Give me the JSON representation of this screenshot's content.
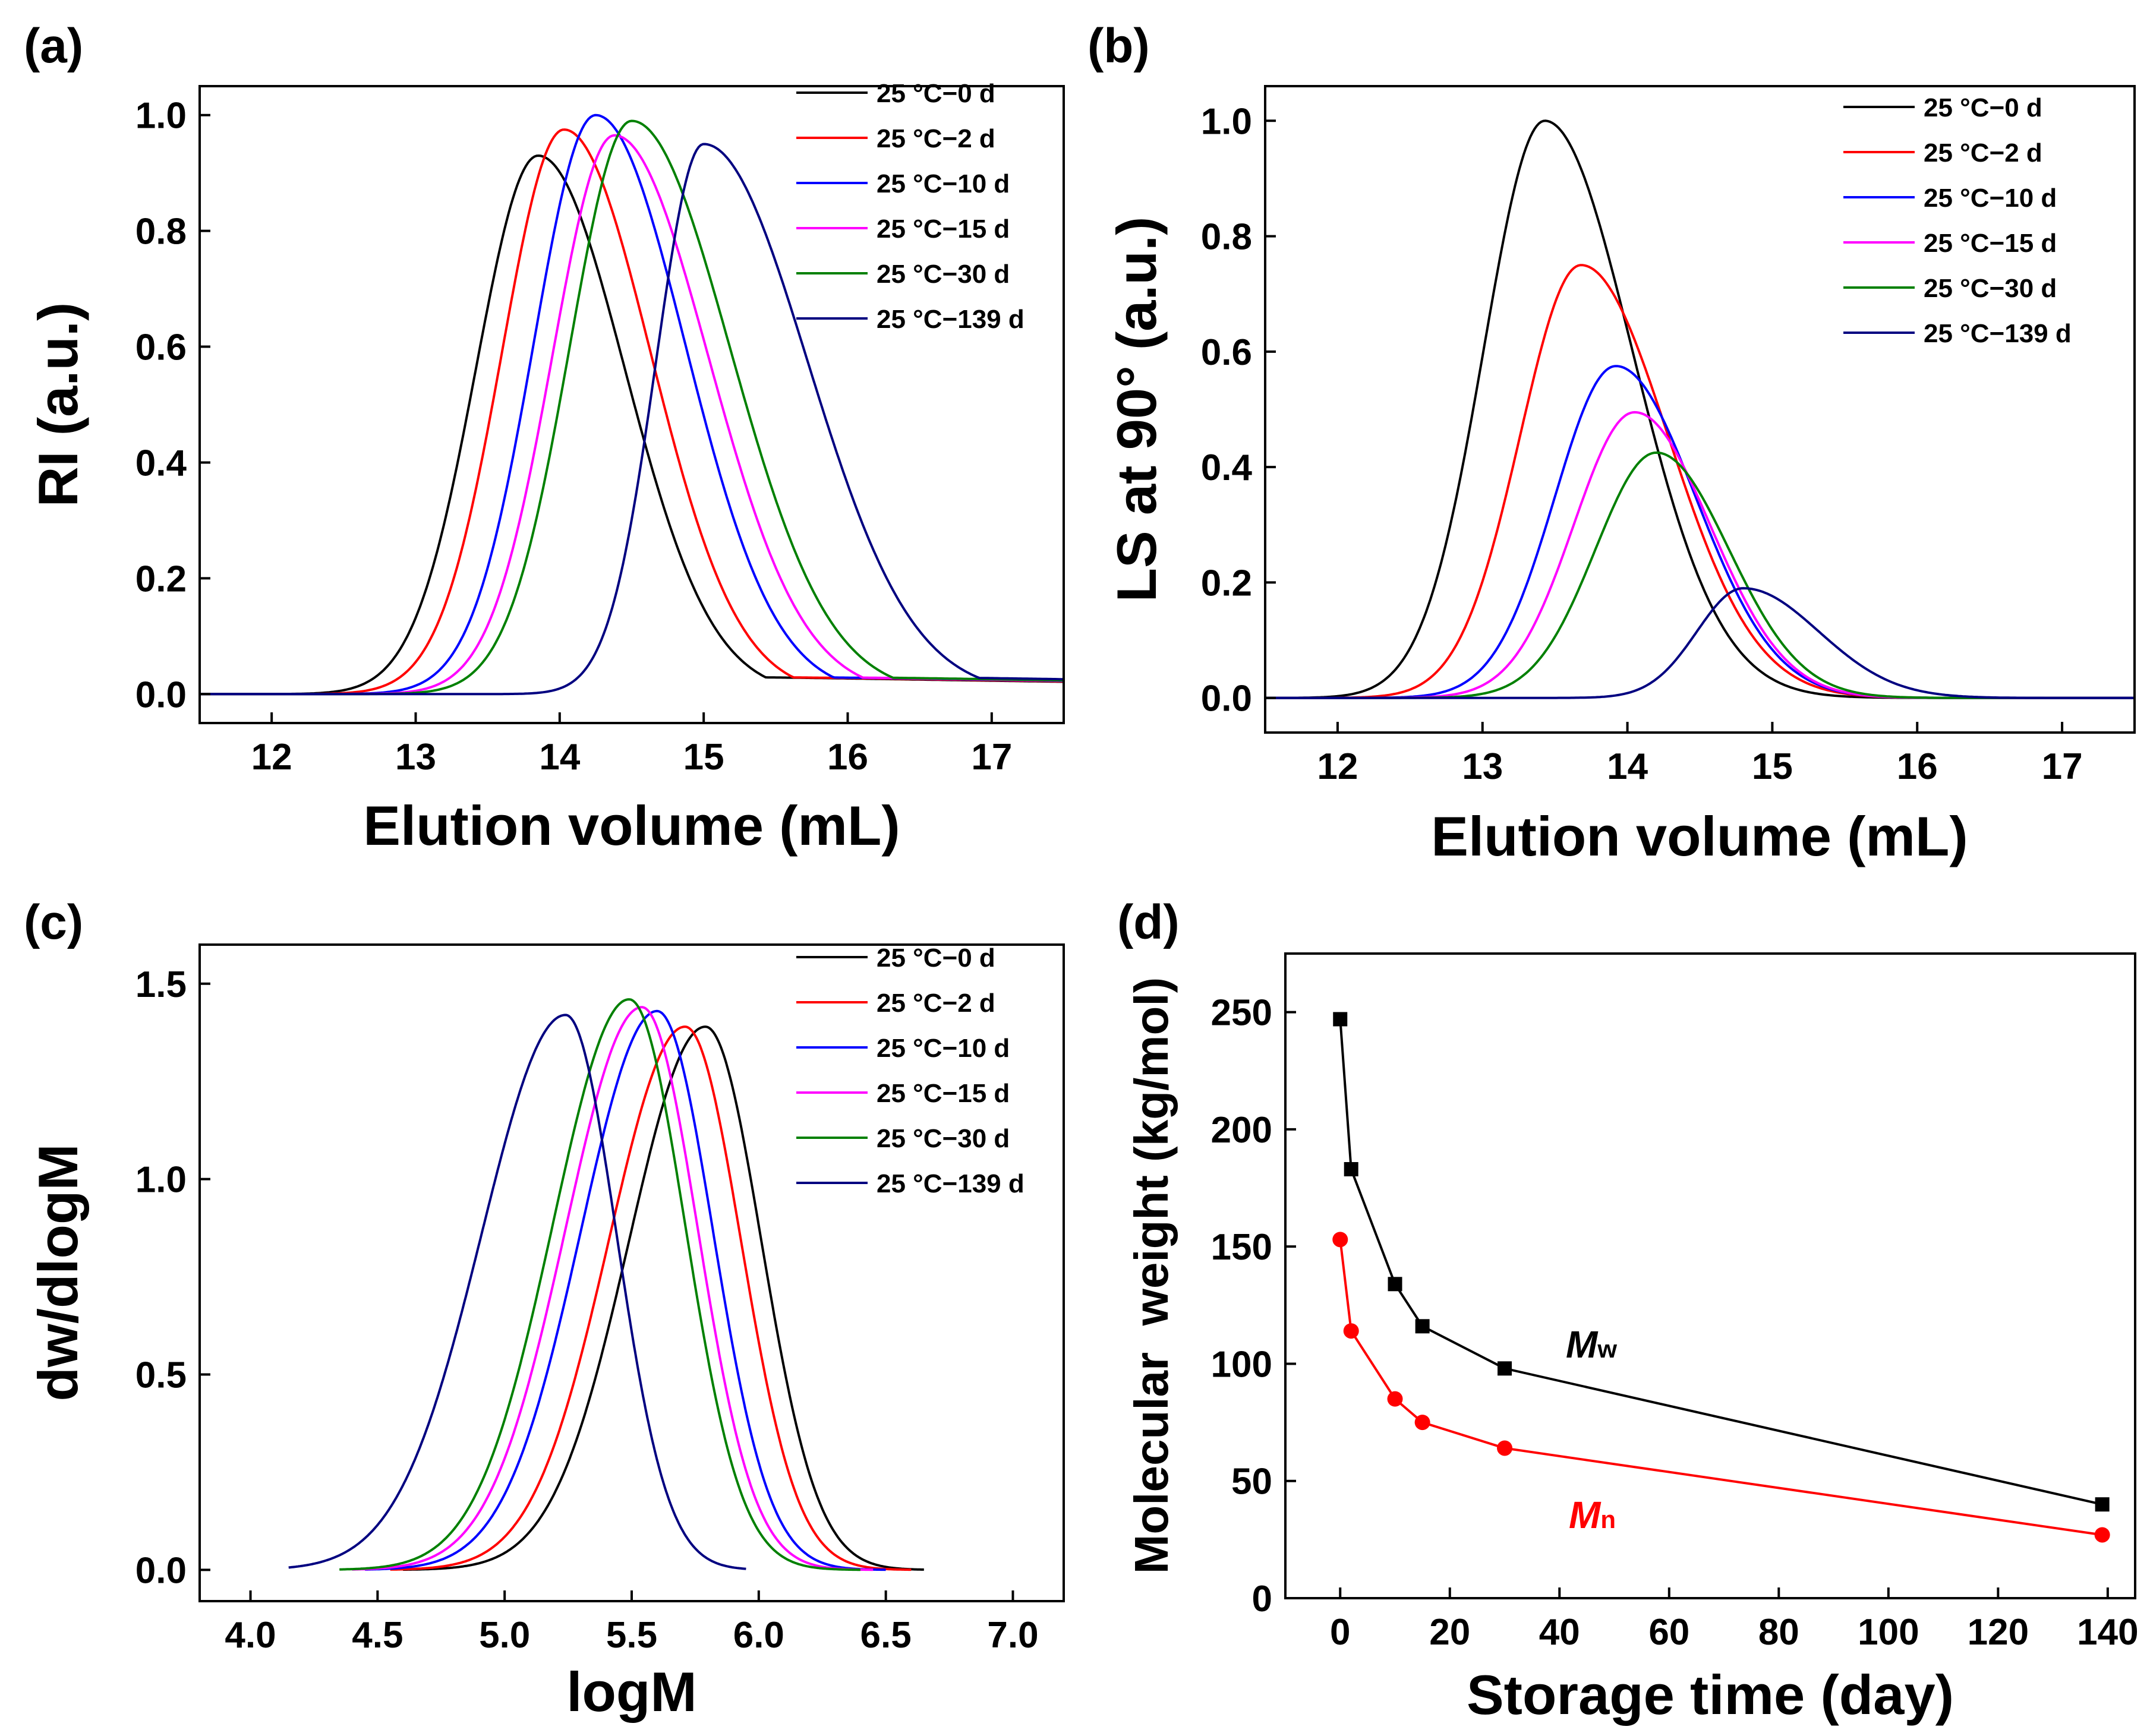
{
  "figure": {
    "description_panels": [
      "a",
      "b",
      "c",
      "d"
    ]
  },
  "legend": {
    "entries": [
      {
        "label": "25 °C−0 d",
        "color": "#000000"
      },
      {
        "label": "25 °C−2 d",
        "color": "#ff0000"
      },
      {
        "label": "25 °C−10 d",
        "color": "#0000ff"
      },
      {
        "label": "25 °C−15 d",
        "color": "#ff00ff"
      },
      {
        "label": "25 °C−30 d",
        "color": "#008000"
      },
      {
        "label": "25 °C−139 d",
        "color": "#000080"
      }
    ]
  },
  "chart_data": [
    {
      "panel": "(a)",
      "type": "line",
      "xlabel": "Elution volume (mL)",
      "ylabel": "RI (a.u.)",
      "xlim": [
        11.5,
        17.5
      ],
      "ylim": [
        -0.05,
        1.05
      ],
      "xticks": [
        12,
        13,
        14,
        15,
        16,
        17
      ],
      "yticks": [
        0.0,
        0.2,
        0.4,
        0.6,
        0.8,
        1.0
      ],
      "ytick_labels": [
        "0.0",
        "0.2",
        "0.4",
        "0.6",
        "0.8",
        "1.0"
      ],
      "legend_position": "top-right",
      "series": [
        {
          "name": "25 °C−0 d",
          "peak_x": 13.85,
          "peak_y": 0.93,
          "sigma_left": 0.43,
          "sigma_right": 0.6,
          "tail": 0.03
        },
        {
          "name": "25 °C−2 d",
          "peak_x": 14.03,
          "peak_y": 0.975,
          "sigma_left": 0.43,
          "sigma_right": 0.6,
          "tail": 0.03
        },
        {
          "name": "25 °C−10 d",
          "peak_x": 14.25,
          "peak_y": 1.0,
          "sigma_left": 0.43,
          "sigma_right": 0.62,
          "tail": 0.03
        },
        {
          "name": "25 °C−15 d",
          "peak_x": 14.38,
          "peak_y": 0.965,
          "sigma_left": 0.43,
          "sigma_right": 0.65,
          "tail": 0.03
        },
        {
          "name": "25 °C−30 d",
          "peak_x": 14.5,
          "peak_y": 0.99,
          "sigma_left": 0.43,
          "sigma_right": 0.68,
          "tail": 0.03
        },
        {
          "name": "25 °C−139 d",
          "peak_x": 15.0,
          "peak_y": 0.95,
          "sigma_left": 0.33,
          "sigma_right": 0.72,
          "tail": 0.03
        }
      ]
    },
    {
      "panel": "(b)",
      "type": "line",
      "xlabel": "Elution volume (mL)",
      "ylabel": "LS at 90° (a.u.)",
      "xlim": [
        11.5,
        17.5
      ],
      "ylim": [
        -0.06,
        1.06
      ],
      "xticks": [
        12,
        13,
        14,
        15,
        16,
        17
      ],
      "yticks": [
        0.0,
        0.2,
        0.4,
        0.6,
        0.8,
        1.0
      ],
      "ytick_labels": [
        "0.0",
        "0.2",
        "0.4",
        "0.6",
        "0.8",
        "1.0"
      ],
      "legend_position": "top-right",
      "series": [
        {
          "name": "25 °C−0 d",
          "peak_x": 13.43,
          "peak_y": 1.0,
          "sigma_left": 0.42,
          "sigma_right": 0.6,
          "tail": 0.0
        },
        {
          "name": "25 °C−2 d",
          "peak_x": 13.68,
          "peak_y": 0.75,
          "sigma_left": 0.42,
          "sigma_right": 0.6,
          "tail": 0.0
        },
        {
          "name": "25 °C−10 d",
          "peak_x": 13.92,
          "peak_y": 0.575,
          "sigma_left": 0.42,
          "sigma_right": 0.55,
          "tail": 0.0
        },
        {
          "name": "25 °C−15 d",
          "peak_x": 14.05,
          "peak_y": 0.495,
          "sigma_left": 0.42,
          "sigma_right": 0.52,
          "tail": 0.0
        },
        {
          "name": "25 °C−30 d",
          "peak_x": 14.2,
          "peak_y": 0.425,
          "sigma_left": 0.42,
          "sigma_right": 0.5,
          "tail": 0.0
        },
        {
          "name": "25 °C−139 d",
          "peak_x": 14.8,
          "peak_y": 0.19,
          "sigma_left": 0.32,
          "sigma_right": 0.52,
          "tail": 0.0
        }
      ]
    },
    {
      "panel": "(c)",
      "type": "line",
      "xlabel": "logM",
      "ylabel": "dw/dlogM",
      "xlim": [
        3.8,
        7.2
      ],
      "ylim": [
        -0.08,
        1.6
      ],
      "xticks": [
        4.0,
        4.5,
        5.0,
        5.5,
        6.0,
        6.5,
        7.0
      ],
      "xtick_labels": [
        "4.0",
        "4.5",
        "5.0",
        "5.5",
        "6.0",
        "6.5",
        "7.0"
      ],
      "yticks": [
        0.0,
        0.5,
        1.0,
        1.5
      ],
      "ytick_labels": [
        "0.0",
        "0.5",
        "1.0",
        "1.5"
      ],
      "legend_position": "top-right",
      "series": [
        {
          "name": "25 °C−0 d",
          "peak_x": 5.79,
          "peak_y": 1.39,
          "sigma_left": 0.3,
          "sigma_right": 0.22,
          "xrange": [
            4.6,
            6.65
          ]
        },
        {
          "name": "25 °C−2 d",
          "peak_x": 5.71,
          "peak_y": 1.39,
          "sigma_left": 0.3,
          "sigma_right": 0.22,
          "xrange": [
            4.55,
            6.6
          ]
        },
        {
          "name": "25 °C−10 d",
          "peak_x": 5.6,
          "peak_y": 1.43,
          "sigma_left": 0.3,
          "sigma_right": 0.22,
          "xrange": [
            4.45,
            6.5
          ]
        },
        {
          "name": "25 °C−15 d",
          "peak_x": 5.54,
          "peak_y": 1.44,
          "sigma_left": 0.3,
          "sigma_right": 0.22,
          "xrange": [
            4.4,
            6.45
          ]
        },
        {
          "name": "25 °C−30 d",
          "peak_x": 5.49,
          "peak_y": 1.46,
          "sigma_left": 0.3,
          "sigma_right": 0.22,
          "xrange": [
            4.35,
            6.4
          ]
        },
        {
          "name": "25 °C−139 d",
          "peak_x": 5.24,
          "peak_y": 1.42,
          "sigma_left": 0.33,
          "sigma_right": 0.2,
          "xrange": [
            4.15,
            5.95
          ]
        }
      ]
    },
    {
      "panel": "(d)",
      "type": "scatter",
      "xlabel": "Storage time (day)",
      "ylabel": "Molecular  weight (kg/mol)",
      "xlim": [
        -10,
        145
      ],
      "ylim": [
        0,
        275
      ],
      "xticks": [
        0,
        20,
        40,
        60,
        80,
        100,
        120,
        140
      ],
      "yticks": [
        0,
        50,
        100,
        150,
        200,
        250
      ],
      "legend_position": "none",
      "series": [
        {
          "name": "Mw",
          "label_main": "M",
          "label_sub": "w",
          "color": "#000000",
          "marker": "square",
          "x": [
            0,
            2,
            10,
            15,
            30,
            139
          ],
          "y": [
            247,
            183,
            134,
            116,
            98,
            40
          ]
        },
        {
          "name": "Mn",
          "label_main": "M",
          "label_sub": "n",
          "color": "#ff0000",
          "marker": "circle",
          "x": [
            0,
            2,
            10,
            15,
            30,
            139
          ],
          "y": [
            153,
            114,
            85,
            75,
            64,
            27
          ]
        }
      ]
    }
  ]
}
